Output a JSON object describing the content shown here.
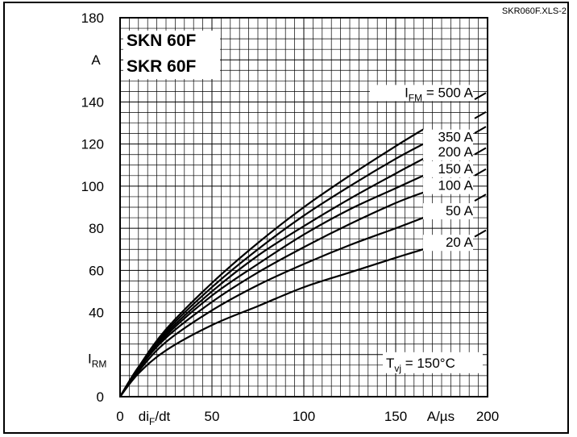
{
  "figure": {
    "reference": "SKR060F.XLS-2",
    "titles": [
      "SKN 60F",
      "SKR 60F"
    ],
    "condition": "T",
    "condition_sub": "vj",
    "condition_value": " = 150°C"
  },
  "colors": {
    "line": "#000000",
    "grid": "#000000",
    "background": "#ffffff"
  },
  "chart_data": {
    "type": "line",
    "title": "",
    "xlabel": "diF/dt",
    "xlabel_main": "di",
    "xlabel_sub": "F",
    "xlabel_tail": "/dt",
    "xunit": "A/µs",
    "ylabel": "IRM",
    "ylabel_main": "I",
    "ylabel_sub": "RM",
    "yunit": "A",
    "xlim": [
      0,
      200
    ],
    "ylim": [
      0,
      180
    ],
    "x_ticks": [
      "0",
      "50",
      "100",
      "150",
      "200"
    ],
    "y_ticks": [
      "0",
      "40",
      "60",
      "80",
      "100",
      "120",
      "140",
      "180"
    ],
    "grid": true,
    "legend_placement": "labels at right end of curves",
    "series_prefix_main": "I",
    "series_prefix_sub": "FM",
    "series_prefix_eq": " = ",
    "x": [
      0,
      10,
      25,
      50,
      75,
      100,
      125,
      150,
      165
    ],
    "series": [
      {
        "name": "500 A",
        "label": "500 A",
        "values": [
          0,
          14,
          32,
          54,
          73,
          90,
          105,
          119,
          127
        ]
      },
      {
        "name": "350 A",
        "label": "350 A",
        "values": [
          0,
          14,
          31,
          52,
          70,
          86,
          100,
          113,
          120
        ]
      },
      {
        "name": "200 A",
        "label": "200 A",
        "values": [
          0,
          14,
          30,
          50,
          67,
          81,
          94,
          106,
          113
        ]
      },
      {
        "name": "150 A",
        "label": "150 A",
        "values": [
          0,
          13,
          29,
          48,
          63,
          77,
          89,
          99,
          105
        ]
      },
      {
        "name": "100 A",
        "label": "100 A",
        "values": [
          0,
          13,
          28,
          45,
          59,
          71,
          82,
          92,
          97
        ]
      },
      {
        "name": "50 A",
        "label": "50 A",
        "values": [
          0,
          12,
          26,
          41,
          53,
          63,
          72,
          80,
          85
        ]
      },
      {
        "name": "20 A",
        "label": "20 A",
        "values": [
          0,
          11,
          22,
          34,
          43,
          52,
          59,
          66,
          70
        ]
      }
    ]
  }
}
